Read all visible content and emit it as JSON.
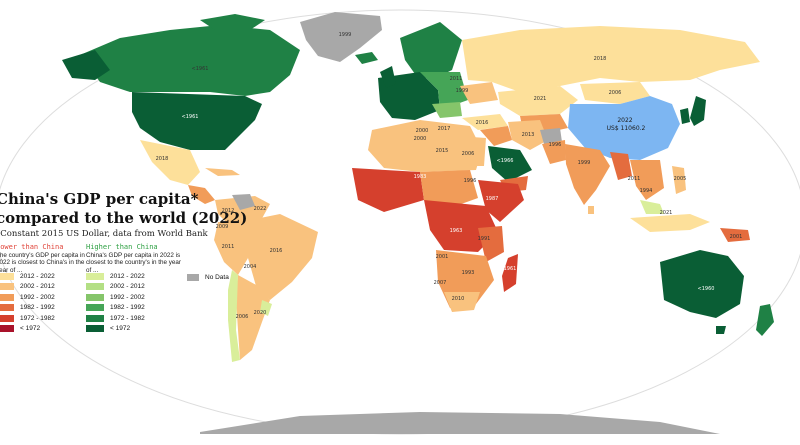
{
  "title_line1": "China's GDP per capita*",
  "title_line2": "compared to the world (2022)",
  "subtitle": "*Constant 2015 US Dollar, data from World Bank",
  "lower": {
    "heading": "Lower than China",
    "description": "The country's GDP per capita in 2022 is closest to China's in the year of ...",
    "color": "#e0443a",
    "items": [
      {
        "label": "2012 - 2022",
        "color": "#fde09a"
      },
      {
        "label": "2002 - 2012",
        "color": "#f9c27e"
      },
      {
        "label": "1992 - 2002",
        "color": "#f19c59"
      },
      {
        "label": "1982 - 1992",
        "color": "#e46c3e"
      },
      {
        "label": "1972 - 1982",
        "color": "#d5402d"
      },
      {
        "label": "< 1972",
        "color": "#a9122a"
      }
    ]
  },
  "higher": {
    "heading": "Higher than China",
    "description": "China's GDP per capita in 2022 is closest to the country's in the year of ...",
    "color": "#2ea043",
    "items": [
      {
        "label": "2012 - 2022",
        "color": "#d9ee9a"
      },
      {
        "label": "2002 - 2012",
        "color": "#b3df84"
      },
      {
        "label": "1992 - 2002",
        "color": "#85c56a"
      },
      {
        "label": "1982 - 1992",
        "color": "#45a557"
      },
      {
        "label": "1972 - 1982",
        "color": "#1f8145"
      },
      {
        "label": "< 1972",
        "color": "#0a5e35"
      }
    ]
  },
  "no_data": {
    "label": "No Data",
    "color": "#a8a8a8"
  },
  "china": {
    "year": "2022",
    "value": "US$ 11060.2",
    "color": "#7db6f2"
  },
  "country_labels": {
    "canada": "<1961",
    "usa": "<1961",
    "greenland": "1999",
    "russia": "2018",
    "mexico": "2018",
    "kazakhstan": "2021",
    "mongolia": "2006",
    "iran": "2013",
    "turkey": "2016",
    "algeria": "2000",
    "libya": "2017",
    "egypt": "2015",
    "sudan": "2006",
    "saudi": "<1966",
    "yemen": "1996",
    "india": "1999",
    "pakistan": "2000",
    "sahel": "1983",
    "nigeria": "1996",
    "ethiopia": "1987",
    "drc": "1963",
    "tanzania": "1991",
    "angola": "2001",
    "zambia": "1993",
    "namibia": "2007",
    "southafrica": "2010",
    "madagascar": "1961",
    "brazil": "2016",
    "peru": "2009",
    "bolivia": "2011",
    "argentina": "2004",
    "chile": "2006",
    "uruguay": "2020",
    "colombia": "2012",
    "venezuela": "2022",
    "australia": "<1960",
    "indonesia": "2021",
    "png": "2001",
    "philippines": "2005",
    "thailand": "2011",
    "vietnam": "1994",
    "europe": "1999",
    "ukraine": "2011"
  }
}
